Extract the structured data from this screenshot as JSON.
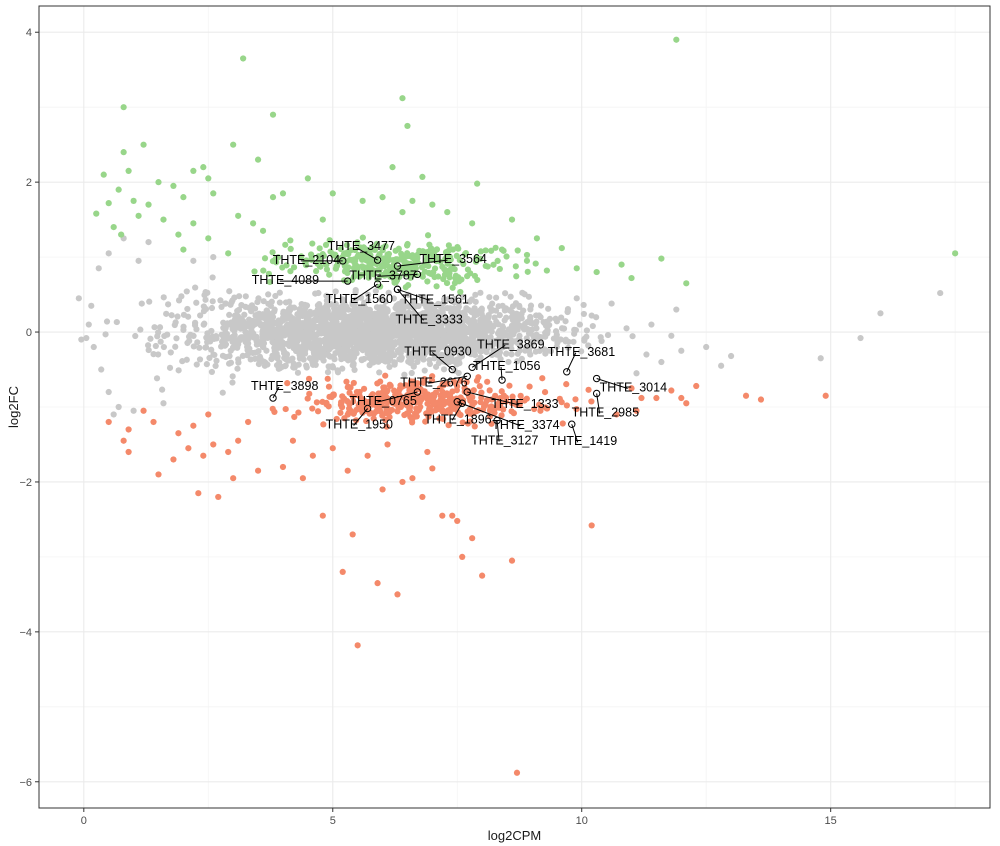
{
  "chart_data": {
    "type": "scatter",
    "title": "",
    "xlabel": "log2CPM",
    "ylabel": "log2FC",
    "xlim": [
      -0.9,
      18.2
    ],
    "ylim": [
      -6.35,
      4.35
    ],
    "x_ticks": [
      0,
      5,
      10,
      15
    ],
    "y_ticks": [
      4,
      2,
      0,
      -2,
      -4,
      -6
    ],
    "grid": true,
    "legend": "none",
    "colors": {
      "up": "#98d68a",
      "down": "#f4896a",
      "ns": "#c8c8c8",
      "panel_border": "#333333",
      "grid_major": "#ebebeb",
      "grid_minor": "#f4f4f4"
    },
    "series": [
      {
        "name": "up",
        "cloud": {
          "x_range": [
            3.0,
            9.5
          ],
          "y_range": [
            0.5,
            1.35
          ],
          "count": 330
        },
        "points": [
          [
            3.2,
            3.65
          ],
          [
            11.9,
            3.9
          ],
          [
            6.4,
            3.12
          ],
          [
            6.5,
            2.75
          ],
          [
            3.8,
            2.9
          ],
          [
            0.8,
            3.0
          ],
          [
            1.2,
            2.5
          ],
          [
            0.8,
            2.4
          ],
          [
            3.0,
            2.5
          ],
          [
            2.2,
            2.15
          ],
          [
            2.4,
            2.2
          ],
          [
            3.5,
            2.3
          ],
          [
            2.5,
            2.05
          ],
          [
            4.5,
            2.05
          ],
          [
            6.2,
            2.2
          ],
          [
            6.8,
            2.07
          ],
          [
            7.9,
            1.98
          ],
          [
            5.0,
            1.85
          ],
          [
            6.0,
            1.8
          ],
          [
            0.4,
            2.1
          ],
          [
            0.9,
            2.15
          ],
          [
            1.5,
            2.0
          ],
          [
            1.8,
            1.95
          ],
          [
            0.7,
            1.9
          ],
          [
            1.0,
            1.75
          ],
          [
            1.3,
            1.7
          ],
          [
            2.0,
            1.8
          ],
          [
            2.6,
            1.85
          ],
          [
            3.8,
            1.8
          ],
          [
            4.0,
            1.85
          ],
          [
            5.6,
            1.75
          ],
          [
            6.4,
            1.6
          ],
          [
            6.6,
            1.75
          ],
          [
            7.0,
            1.7
          ],
          [
            7.3,
            1.6
          ],
          [
            8.6,
            1.5
          ],
          [
            9.1,
            1.25
          ],
          [
            9.6,
            1.12
          ],
          [
            11.6,
            0.98
          ],
          [
            12.1,
            0.65
          ],
          [
            17.5,
            1.05
          ],
          [
            0.25,
            1.58
          ],
          [
            0.5,
            1.72
          ],
          [
            1.1,
            1.55
          ],
          [
            1.6,
            1.5
          ],
          [
            2.2,
            1.45
          ],
          [
            0.6,
            1.4
          ],
          [
            9.9,
            0.85
          ],
          [
            10.3,
            0.8
          ],
          [
            10.8,
            0.9
          ],
          [
            11.0,
            0.72
          ],
          [
            3.1,
            1.55
          ],
          [
            3.4,
            1.45
          ],
          [
            1.9,
            1.3
          ],
          [
            2.5,
            1.25
          ],
          [
            0.75,
            1.3
          ],
          [
            8.9,
            0.95
          ],
          [
            9.3,
            0.82
          ],
          [
            7.8,
            1.45
          ],
          [
            8.4,
            1.1
          ],
          [
            2.9,
            1.05
          ],
          [
            2.0,
            1.1
          ],
          [
            3.6,
            1.35
          ],
          [
            4.8,
            1.5
          ]
        ]
      },
      {
        "name": "down",
        "cloud": {
          "x_range": [
            3.2,
            10.6
          ],
          "y_range": [
            -1.35,
            -0.5
          ],
          "count": 380
        },
        "points": [
          [
            8.7,
            -5.88
          ],
          [
            5.5,
            -4.18
          ],
          [
            6.3,
            -3.5
          ],
          [
            5.2,
            -3.2
          ],
          [
            8.0,
            -3.25
          ],
          [
            5.9,
            -3.35
          ],
          [
            7.6,
            -3.0
          ],
          [
            8.6,
            -3.05
          ],
          [
            5.4,
            -2.7
          ],
          [
            7.4,
            -2.45
          ],
          [
            7.8,
            -2.75
          ],
          [
            10.2,
            -2.58
          ],
          [
            4.8,
            -2.45
          ],
          [
            7.2,
            -2.45
          ],
          [
            7.5,
            -2.52
          ],
          [
            2.3,
            -2.15
          ],
          [
            2.7,
            -2.2
          ],
          [
            3.0,
            -1.95
          ],
          [
            6.4,
            -2.0
          ],
          [
            6.6,
            -1.95
          ],
          [
            6.0,
            -2.1
          ],
          [
            7.0,
            -1.82
          ],
          [
            3.5,
            -1.85
          ],
          [
            4.0,
            -1.8
          ],
          [
            1.5,
            -1.9
          ],
          [
            0.9,
            -1.6
          ],
          [
            0.8,
            -1.45
          ],
          [
            2.1,
            -1.55
          ],
          [
            2.4,
            -1.65
          ],
          [
            2.6,
            -1.5
          ],
          [
            1.8,
            -1.7
          ],
          [
            0.5,
            -1.2
          ],
          [
            0.9,
            -1.3
          ],
          [
            1.4,
            -1.2
          ],
          [
            1.9,
            -1.35
          ],
          [
            2.2,
            -1.25
          ],
          [
            2.5,
            -1.1
          ],
          [
            14.9,
            -0.85
          ],
          [
            13.3,
            -0.85
          ],
          [
            13.6,
            -0.9
          ],
          [
            12.3,
            -0.72
          ],
          [
            11.8,
            -0.78
          ],
          [
            12.0,
            -0.88
          ],
          [
            11.5,
            -0.88
          ],
          [
            11.2,
            -0.88
          ],
          [
            11.0,
            -0.75
          ],
          [
            10.7,
            -1.1
          ],
          [
            11.1,
            -1.05
          ],
          [
            12.1,
            -0.95
          ],
          [
            4.2,
            -1.45
          ],
          [
            4.6,
            -1.65
          ],
          [
            5.0,
            -1.55
          ],
          [
            5.7,
            -1.65
          ],
          [
            6.1,
            -1.5
          ],
          [
            6.9,
            -1.6
          ],
          [
            5.3,
            -1.85
          ],
          [
            4.4,
            -1.95
          ],
          [
            6.8,
            -2.2
          ],
          [
            3.1,
            -1.45
          ],
          [
            2.9,
            -1.6
          ],
          [
            1.2,
            -1.05
          ],
          [
            3.3,
            -1.2
          ]
        ]
      },
      {
        "name": "ns",
        "cloud": {
          "x_range": [
            0.3,
            11.2
          ],
          "y_range": [
            -0.75,
            0.75
          ],
          "count": 2300
        },
        "points": [
          [
            -0.1,
            0.45
          ],
          [
            0.1,
            0.1
          ],
          [
            0.2,
            -0.2
          ],
          [
            0.35,
            -0.5
          ],
          [
            0.5,
            -0.8
          ],
          [
            0.7,
            -1.0
          ],
          [
            0.8,
            1.25
          ],
          [
            0.5,
            1.05
          ],
          [
            0.3,
            0.85
          ],
          [
            0.6,
            -1.1
          ],
          [
            1.0,
            -1.05
          ],
          [
            1.3,
            1.2
          ],
          [
            1.1,
            0.95
          ],
          [
            1.6,
            -0.95
          ],
          [
            17.2,
            0.52
          ],
          [
            16.0,
            0.25
          ],
          [
            15.6,
            -0.08
          ],
          [
            14.8,
            -0.35
          ],
          [
            13.0,
            -0.32
          ],
          [
            12.5,
            -0.2
          ],
          [
            12.8,
            -0.45
          ],
          [
            12.0,
            -0.25
          ],
          [
            11.8,
            -0.05
          ],
          [
            11.4,
            0.1
          ],
          [
            11.6,
            -0.4
          ],
          [
            11.9,
            0.3
          ],
          [
            11.3,
            -0.3
          ],
          [
            10.9,
            0.05
          ],
          [
            11.1,
            -0.55
          ],
          [
            10.6,
            0.38
          ],
          [
            10.4,
            -0.12
          ],
          [
            9.9,
            0.45
          ],
          [
            10.2,
            0.22
          ],
          [
            2.2,
            0.95
          ],
          [
            2.6,
            1.0
          ],
          [
            0.05,
            -0.08
          ],
          [
            0.15,
            0.35
          ],
          [
            -0.05,
            -0.1
          ]
        ]
      }
    ],
    "labeled_points": [
      {
        "label": "THTE_3477",
        "x": 5.9,
        "y": 0.96
      },
      {
        "label": "THTE_2104",
        "x": 5.2,
        "y": 0.95
      },
      {
        "label": "THTE_3564",
        "x": 6.3,
        "y": 0.88
      },
      {
        "label": "THTE_3787",
        "x": 6.7,
        "y": 0.77
      },
      {
        "label": "THTE_4089",
        "x": 5.3,
        "y": 0.68
      },
      {
        "label": "THTE_1560",
        "x": 5.9,
        "y": 0.64
      },
      {
        "label": "THTE_1561",
        "x": 6.3,
        "y": 0.57
      },
      {
        "label": "THTE_3333",
        "x": 6.3,
        "y": 0.57
      },
      {
        "label": "THTE_0930",
        "x": 7.4,
        "y": -0.5
      },
      {
        "label": "THTE_3869",
        "x": 7.8,
        "y": -0.47
      },
      {
        "label": "THTE_3681",
        "x": 9.7,
        "y": -0.53
      },
      {
        "label": "THTE_2676",
        "x": 7.7,
        "y": -0.59
      },
      {
        "label": "THTE_1056",
        "x": 8.4,
        "y": -0.64
      },
      {
        "label": "THTE_3014",
        "x": 10.3,
        "y": -0.62
      },
      {
        "label": "THTE_3898",
        "x": 3.8,
        "y": -0.88
      },
      {
        "label": "THTE_0765",
        "x": 6.7,
        "y": -0.8
      },
      {
        "label": "THTE_1333",
        "x": 7.7,
        "y": -0.8
      },
      {
        "label": "THTE_2985",
        "x": 10.3,
        "y": -0.82
      },
      {
        "label": "THTE_1896",
        "x": 7.6,
        "y": -0.95
      },
      {
        "label": "THTE_3374",
        "x": 7.5,
        "y": -0.93
      },
      {
        "label": "THTE_1950",
        "x": 5.7,
        "y": -1.02
      },
      {
        "label": "THTE_3127",
        "x": 8.3,
        "y": -1.18
      },
      {
        "label": "THTE_1419",
        "x": 9.8,
        "y": -1.23
      }
    ]
  }
}
